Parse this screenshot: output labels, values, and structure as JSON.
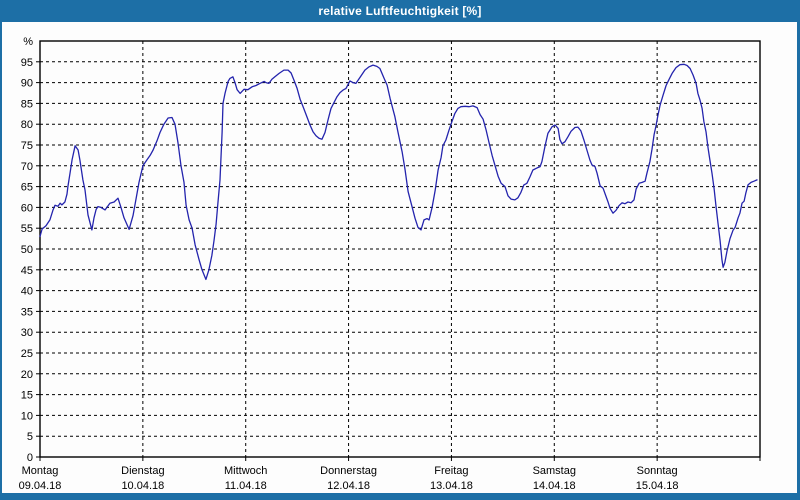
{
  "window": {
    "title": "relative Luftfeuchtigkeit [%]"
  },
  "colors": {
    "titlebar_bg": "#1d6fa6",
    "window_border": "#1d6fa6",
    "plot_bg": "#fdfdfd",
    "grid": "#000000",
    "axis": "#000000",
    "text": "#000000",
    "line": "#2424ad"
  },
  "chart_data": {
    "type": "line",
    "title": "relative Luftfeuchtigkeit [%]",
    "xlabel": "",
    "ylabel": "%",
    "unit_label": "%",
    "ylim": [
      0,
      100
    ],
    "yticks": [
      0,
      5,
      10,
      15,
      20,
      25,
      30,
      35,
      40,
      45,
      50,
      55,
      60,
      65,
      70,
      75,
      80,
      85,
      90,
      95
    ],
    "x_unit": "hours",
    "xlim": [
      0,
      168
    ],
    "grid": "dashed",
    "legend": "none",
    "x_labels": [
      {
        "day": "Montag",
        "date": "09.04.18",
        "t": 0
      },
      {
        "day": "Dienstag",
        "date": "10.04.18",
        "t": 24
      },
      {
        "day": "Mittwoch",
        "date": "11.04.18",
        "t": 48
      },
      {
        "day": "Donnerstag",
        "date": "12.04.18",
        "t": 72
      },
      {
        "day": "Freitag",
        "date": "13.04.18",
        "t": 96
      },
      {
        "day": "Samstag",
        "date": "14.04.18",
        "t": 120
      },
      {
        "day": "Sonntag",
        "date": "15.04.18",
        "t": 144
      }
    ],
    "series": [
      {
        "name": "relative Luftfeuchtigkeit",
        "color": "#2424ad",
        "points": [
          [
            0,
            53
          ],
          [
            0.5,
            54.8
          ],
          [
            1.4,
            55.6
          ],
          [
            2.3,
            57
          ],
          [
            3.0,
            59.3
          ],
          [
            3.5,
            60.5
          ],
          [
            4.2,
            60.3
          ],
          [
            4.7,
            61
          ],
          [
            5.1,
            60.6
          ],
          [
            5.8,
            61.3
          ],
          [
            6.3,
            63.2
          ],
          [
            6.5,
            65
          ],
          [
            7.0,
            68.2
          ],
          [
            7.5,
            71.5
          ],
          [
            8.2,
            74.8
          ],
          [
            8.9,
            73.8
          ],
          [
            9.3,
            71.4
          ],
          [
            10.0,
            66.6
          ],
          [
            10.5,
            64.2
          ],
          [
            11.2,
            58.2
          ],
          [
            12.1,
            54.6
          ],
          [
            12.6,
            57.5
          ],
          [
            13.1,
            59.5
          ],
          [
            13.5,
            60.2
          ],
          [
            14.2,
            60
          ],
          [
            15.2,
            59.4
          ],
          [
            16.3,
            61
          ],
          [
            17.3,
            61.3
          ],
          [
            18.2,
            62.2
          ],
          [
            18.9,
            60
          ],
          [
            19.6,
            57.5
          ],
          [
            20.8,
            54.7
          ],
          [
            21.7,
            58
          ],
          [
            22.4,
            62
          ],
          [
            23.1,
            66
          ],
          [
            24.0,
            70
          ],
          [
            25.0,
            71.5
          ],
          [
            25.7,
            72.5
          ],
          [
            26.4,
            73.8
          ],
          [
            27.3,
            76
          ],
          [
            28.0,
            78
          ],
          [
            28.9,
            80
          ],
          [
            29.9,
            81.5
          ],
          [
            30.8,
            81.6
          ],
          [
            31.5,
            80
          ],
          [
            32.2,
            75.5
          ],
          [
            32.9,
            70
          ],
          [
            33.6,
            66
          ],
          [
            34.1,
            60.5
          ],
          [
            34.8,
            57
          ],
          [
            35.5,
            55
          ],
          [
            36.2,
            51
          ],
          [
            37.1,
            47.5
          ],
          [
            37.8,
            45
          ],
          [
            38.7,
            42.7
          ],
          [
            39.4,
            45
          ],
          [
            40.1,
            48.5
          ],
          [
            40.6,
            52
          ],
          [
            41.1,
            56
          ],
          [
            41.5,
            61
          ],
          [
            42.0,
            66.6
          ],
          [
            42.5,
            78
          ],
          [
            42.7,
            85
          ],
          [
            43.2,
            87.5
          ],
          [
            43.9,
            90.3
          ],
          [
            44.3,
            91
          ],
          [
            45.0,
            91.4
          ],
          [
            45.5,
            90
          ],
          [
            46.0,
            88.3
          ],
          [
            46.7,
            87.4
          ],
          [
            47.6,
            88.4
          ],
          [
            48.5,
            88.3
          ],
          [
            49.5,
            89
          ],
          [
            50.4,
            89.3
          ],
          [
            51.3,
            89.8
          ],
          [
            52.3,
            90.3
          ],
          [
            52.7,
            90
          ],
          [
            53.4,
            89.8
          ],
          [
            54.1,
            90.8
          ],
          [
            54.8,
            91.4
          ],
          [
            55.8,
            92.2
          ],
          [
            56.9,
            93
          ],
          [
            57.9,
            93
          ],
          [
            58.6,
            92.3
          ],
          [
            59.3,
            90.5
          ],
          [
            60.0,
            88.6
          ],
          [
            60.7,
            86
          ],
          [
            61.4,
            84.2
          ],
          [
            62.1,
            82.3
          ],
          [
            63.0,
            79.8
          ],
          [
            63.7,
            78.2
          ],
          [
            64.4,
            77.2
          ],
          [
            65.1,
            76.6
          ],
          [
            65.8,
            76.4
          ],
          [
            66.5,
            78
          ],
          [
            67.2,
            81
          ],
          [
            67.9,
            83.8
          ],
          [
            68.6,
            85.2
          ],
          [
            69.3,
            86.6
          ],
          [
            70.0,
            87.6
          ],
          [
            70.7,
            88.2
          ],
          [
            71.4,
            88.6
          ],
          [
            72.3,
            90.4
          ],
          [
            73.0,
            90
          ],
          [
            73.7,
            89.8
          ],
          [
            74.7,
            91.3
          ],
          [
            75.8,
            93
          ],
          [
            76.8,
            93.8
          ],
          [
            77.7,
            94.2
          ],
          [
            78.6,
            93.9
          ],
          [
            79.3,
            93.4
          ],
          [
            80.3,
            91
          ],
          [
            81.0,
            89.4
          ],
          [
            81.7,
            86.2
          ],
          [
            82.8,
            81.8
          ],
          [
            83.5,
            78.2
          ],
          [
            84.5,
            73.4
          ],
          [
            85.2,
            69
          ],
          [
            85.9,
            63.8
          ],
          [
            86.8,
            60.2
          ],
          [
            87.5,
            57.4
          ],
          [
            88.2,
            55.2
          ],
          [
            88.9,
            54.6
          ],
          [
            89.6,
            57
          ],
          [
            90.3,
            57.3
          ],
          [
            90.8,
            57
          ],
          [
            91.5,
            60
          ],
          [
            92.2,
            64
          ],
          [
            92.9,
            69
          ],
          [
            93.6,
            72
          ],
          [
            94.0,
            74.8
          ],
          [
            94.7,
            76.2
          ],
          [
            95.4,
            78.5
          ],
          [
            96.1,
            80.6
          ],
          [
            96.8,
            82.6
          ],
          [
            97.5,
            83.8
          ],
          [
            98.2,
            84.2
          ],
          [
            99.2,
            84.3
          ],
          [
            100.1,
            84.2
          ],
          [
            101.0,
            84.4
          ],
          [
            102.0,
            84
          ],
          [
            102.7,
            82.3
          ],
          [
            103.4,
            81.2
          ],
          [
            104.1,
            78.6
          ],
          [
            104.8,
            75.5
          ],
          [
            105.5,
            72.5
          ],
          [
            106.2,
            70
          ],
          [
            106.9,
            67.5
          ],
          [
            107.6,
            65.8
          ],
          [
            108.5,
            65
          ],
          [
            109.2,
            62.8
          ],
          [
            109.9,
            62
          ],
          [
            110.8,
            61.8
          ],
          [
            111.5,
            62.3
          ],
          [
            112.2,
            63.6
          ],
          [
            112.9,
            65.4
          ],
          [
            113.6,
            65.8
          ],
          [
            114.3,
            67.3
          ],
          [
            115.0,
            69
          ],
          [
            116.0,
            69.5
          ],
          [
            116.7,
            69.8
          ],
          [
            117.1,
            71
          ],
          [
            117.8,
            74.6
          ],
          [
            118.5,
            77.8
          ],
          [
            119.5,
            79.4
          ],
          [
            120.2,
            79.8
          ],
          [
            120.9,
            79
          ],
          [
            121.3,
            76.3
          ],
          [
            121.8,
            75.3
          ],
          [
            122.5,
            75.8
          ],
          [
            123.2,
            77
          ],
          [
            123.9,
            78.3
          ],
          [
            124.8,
            79.2
          ],
          [
            125.5,
            79.3
          ],
          [
            126.2,
            78.4
          ],
          [
            126.9,
            76.2
          ],
          [
            127.6,
            73.8
          ],
          [
            128.3,
            71.4
          ],
          [
            128.8,
            70.2
          ],
          [
            129.5,
            69.8
          ],
          [
            130.0,
            68.2
          ],
          [
            130.7,
            65.2
          ],
          [
            131.4,
            64.6
          ],
          [
            132.1,
            62.6
          ],
          [
            132.5,
            61.4
          ],
          [
            133.0,
            59.8
          ],
          [
            133.7,
            58.6
          ],
          [
            134.4,
            59.3
          ],
          [
            135.1,
            60.4
          ],
          [
            135.8,
            61.1
          ],
          [
            136.5,
            60.9
          ],
          [
            137.2,
            61.3
          ],
          [
            137.9,
            61.1
          ],
          [
            138.6,
            61.8
          ],
          [
            139.1,
            64.4
          ],
          [
            139.8,
            65.8
          ],
          [
            140.5,
            66
          ],
          [
            141.2,
            66.3
          ],
          [
            141.6,
            68.2
          ],
          [
            142.3,
            71
          ],
          [
            142.8,
            74
          ],
          [
            143.3,
            77.5
          ],
          [
            143.7,
            79.5
          ],
          [
            144.2,
            82.2
          ],
          [
            144.7,
            84.6
          ],
          [
            145.4,
            87
          ],
          [
            146.1,
            89.3
          ],
          [
            146.8,
            90.8
          ],
          [
            147.5,
            92.2
          ],
          [
            148.4,
            93.6
          ],
          [
            149.3,
            94.3
          ],
          [
            150.3,
            94.4
          ],
          [
            151.0,
            94.1
          ],
          [
            151.7,
            93.4
          ],
          [
            152.4,
            91.8
          ],
          [
            153.1,
            89.8
          ],
          [
            153.5,
            87.4
          ],
          [
            154.0,
            85.8
          ],
          [
            154.5,
            83.8
          ],
          [
            154.9,
            80.6
          ],
          [
            155.4,
            78.2
          ],
          [
            155.9,
            74.2
          ],
          [
            156.3,
            71.4
          ],
          [
            156.8,
            68.2
          ],
          [
            157.3,
            64.5
          ],
          [
            157.7,
            60.5
          ],
          [
            158.2,
            56.2
          ],
          [
            158.7,
            52
          ],
          [
            159.1,
            47.5
          ],
          [
            159.4,
            45.6
          ],
          [
            159.8,
            46.8
          ],
          [
            160.3,
            49.5
          ],
          [
            161.0,
            52.5
          ],
          [
            161.7,
            54.5
          ],
          [
            162.2,
            55.2
          ],
          [
            162.9,
            57.5
          ],
          [
            163.3,
            58.6
          ],
          [
            163.8,
            61
          ],
          [
            164.3,
            61.5
          ],
          [
            164.7,
            63.5
          ],
          [
            165.2,
            65.4
          ],
          [
            165.9,
            66
          ],
          [
            166.6,
            66.3
          ],
          [
            167.3,
            66.6
          ]
        ]
      }
    ]
  }
}
